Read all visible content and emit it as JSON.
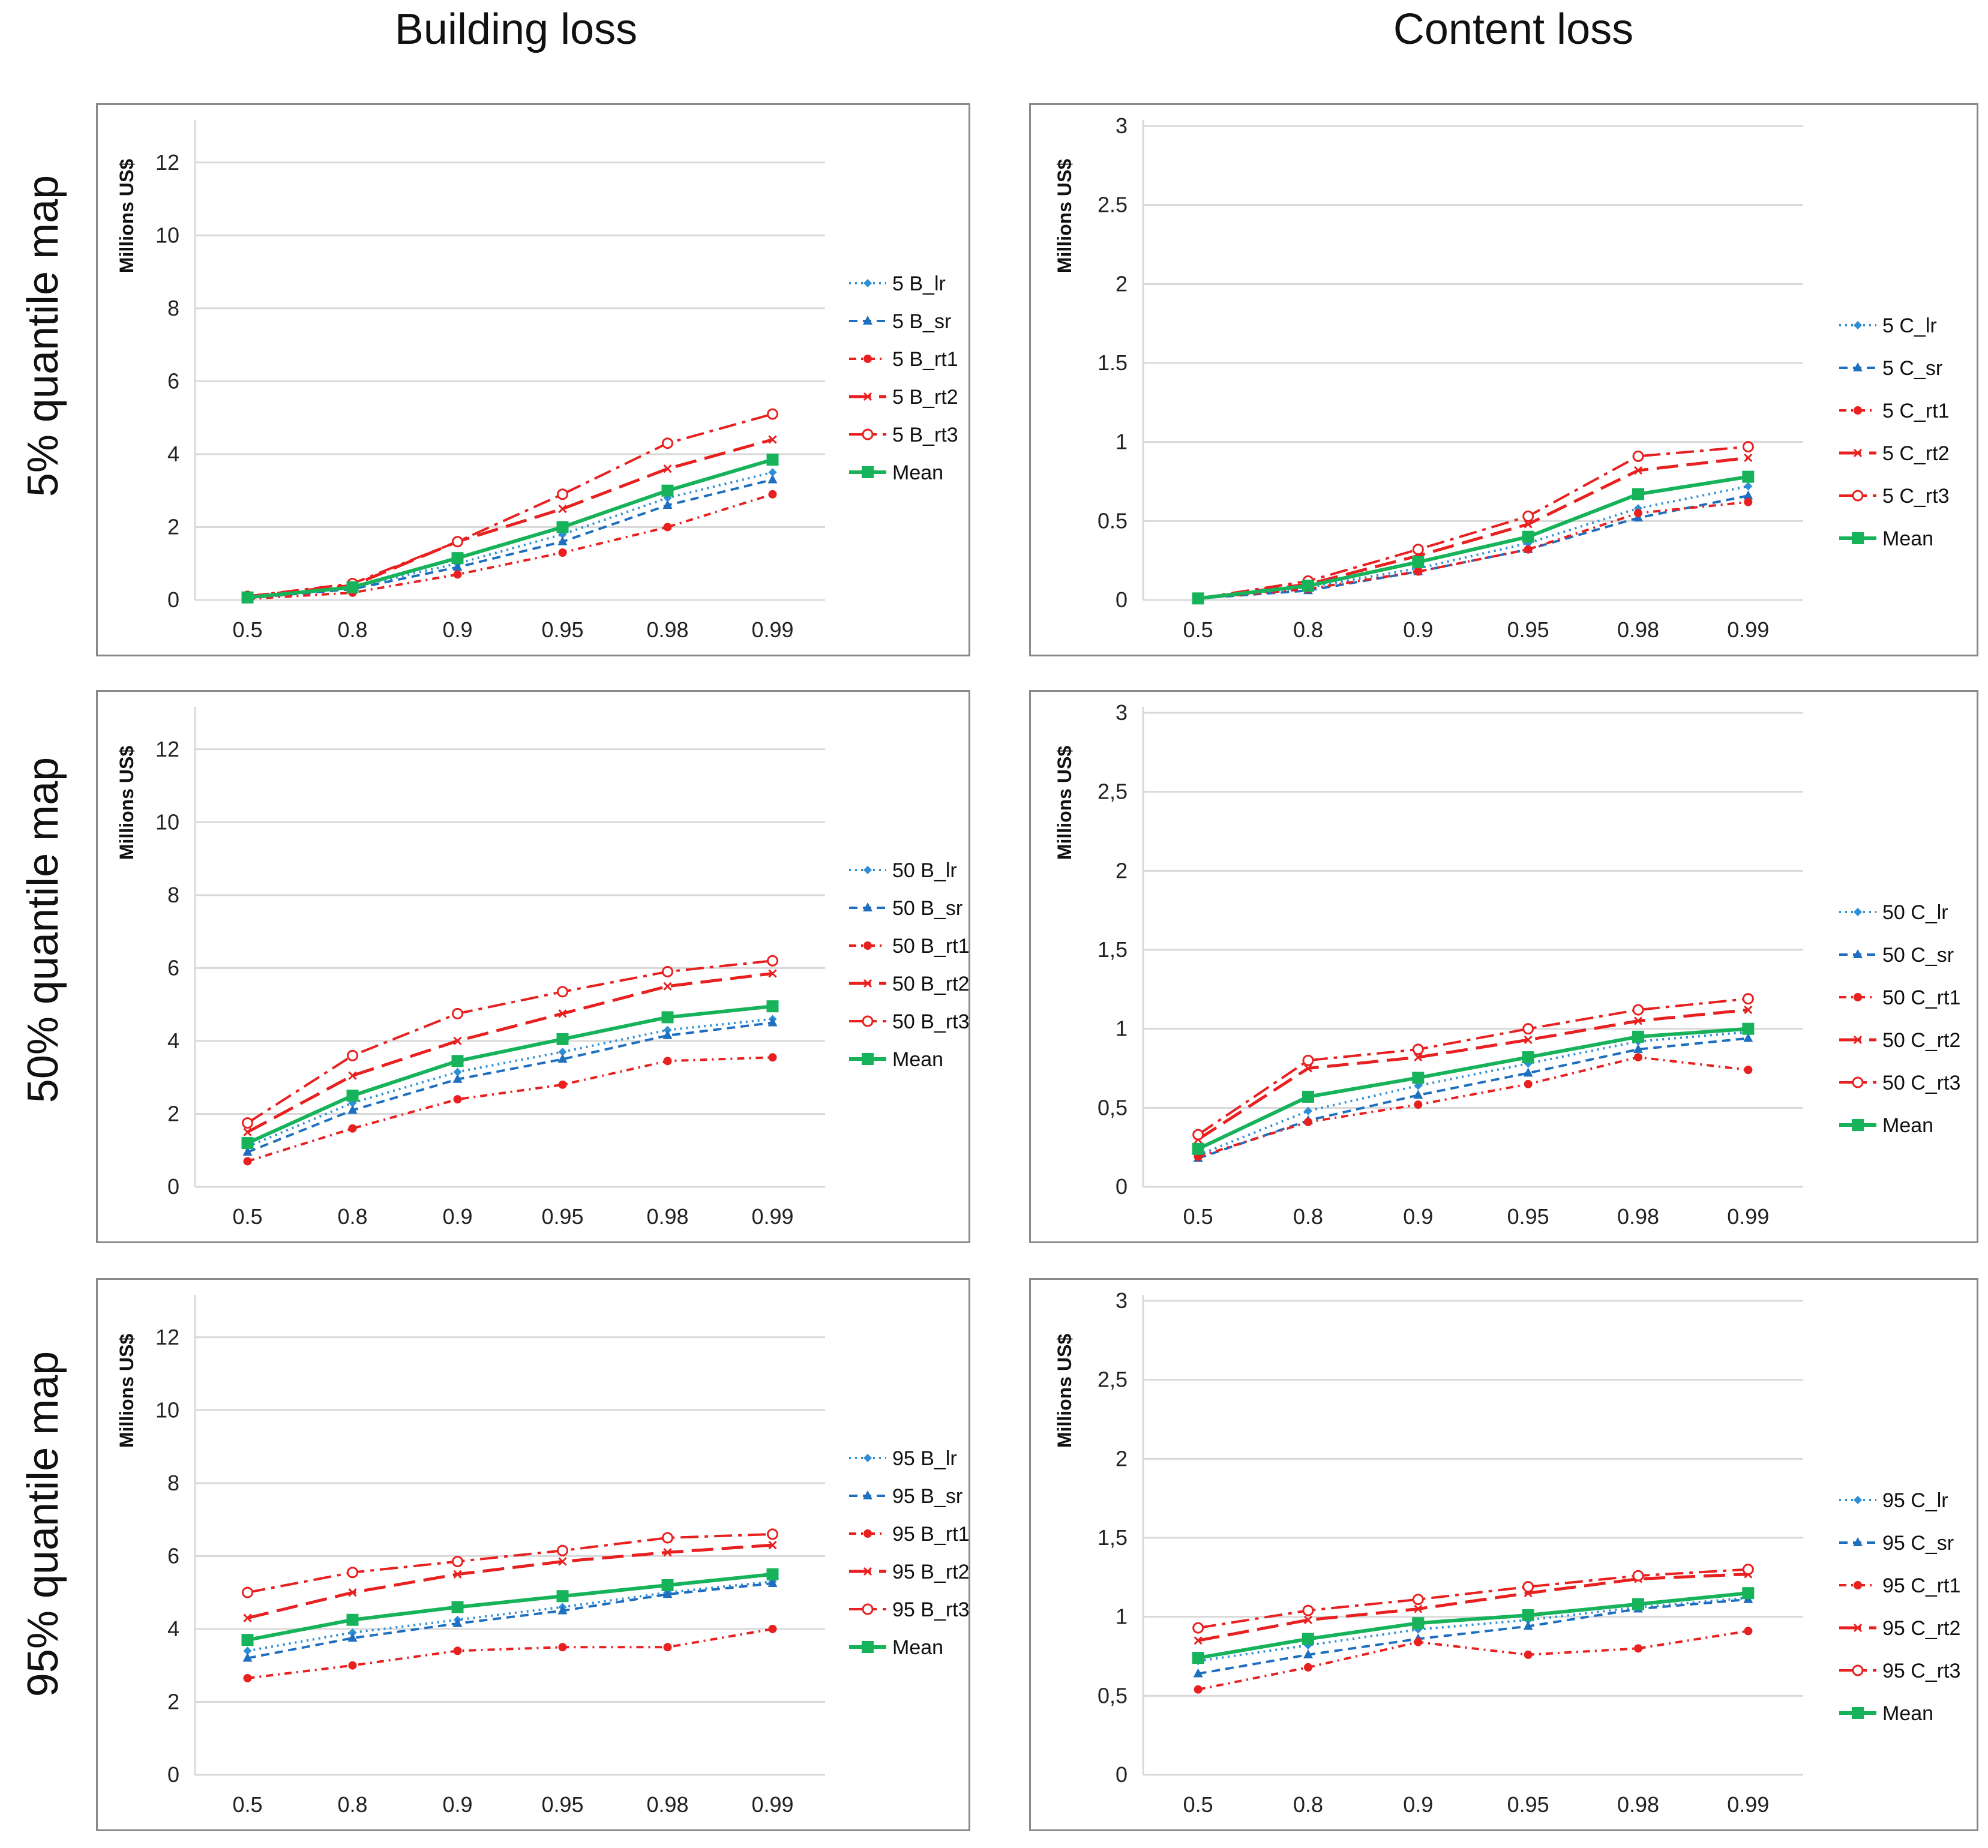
{
  "column_titles": [
    "Building loss",
    "Content loss"
  ],
  "row_titles": [
    "5% quantile map",
    "50% quantile map",
    "95% quantile map"
  ],
  "colors": {
    "lr": "#2e8fd6",
    "sr": "#1f6fc0",
    "rt1": "#e82020",
    "rt2": "#e82020",
    "rt3": "#e82020",
    "mean": "#16b35a"
  },
  "chart_data": [
    {
      "type": "line",
      "ylabel": "Millions US$",
      "ylim": [
        0,
        13
      ],
      "yticks": [
        "0",
        "2",
        "4",
        "6",
        "8",
        "10",
        "12"
      ],
      "categories": [
        "0.5",
        "0.8",
        "0.9",
        "0.95",
        "0.98",
        "0.99"
      ],
      "series": [
        {
          "name": "5 B_lr",
          "style": "lr",
          "values": [
            0.05,
            0.35,
            1.0,
            1.8,
            2.8,
            3.5
          ]
        },
        {
          "name": "5 B_sr",
          "style": "sr",
          "values": [
            0.05,
            0.3,
            0.9,
            1.6,
            2.6,
            3.3
          ]
        },
        {
          "name": "5 B_rt1",
          "style": "rt1",
          "values": [
            0.03,
            0.2,
            0.7,
            1.3,
            2.0,
            2.9
          ]
        },
        {
          "name": "5 B_rt2",
          "style": "rt2",
          "values": [
            0.1,
            0.4,
            1.6,
            2.5,
            3.6,
            4.4
          ]
        },
        {
          "name": "5 B_rt3",
          "style": "rt3",
          "values": [
            0.1,
            0.45,
            1.6,
            2.9,
            4.3,
            5.1
          ]
        },
        {
          "name": "Mean",
          "style": "mean",
          "values": [
            0.07,
            0.35,
            1.15,
            2.0,
            3.0,
            3.85
          ]
        }
      ]
    },
    {
      "type": "line",
      "ylabel": "Millions US$",
      "ylim": [
        0,
        3
      ],
      "yticks": [
        "0",
        "0.5",
        "1",
        "1.5",
        "2",
        "2.5",
        "3"
      ],
      "categories": [
        "0.5",
        "0.8",
        "0.9",
        "0.95",
        "0.98",
        "0.99"
      ],
      "series": [
        {
          "name": "5 C_lr",
          "style": "lr",
          "values": [
            0.01,
            0.08,
            0.2,
            0.36,
            0.58,
            0.72
          ]
        },
        {
          "name": "5 C_sr",
          "style": "sr",
          "values": [
            0.01,
            0.06,
            0.18,
            0.32,
            0.52,
            0.66
          ]
        },
        {
          "name": "5 C_rt1",
          "style": "rt1",
          "values": [
            0.01,
            0.07,
            0.18,
            0.32,
            0.55,
            0.62
          ]
        },
        {
          "name": "5 C_rt2",
          "style": "rt2",
          "values": [
            0.01,
            0.1,
            0.28,
            0.48,
            0.82,
            0.9
          ]
        },
        {
          "name": "5 C_rt3",
          "style": "rt3",
          "values": [
            0.01,
            0.12,
            0.32,
            0.53,
            0.91,
            0.97
          ]
        },
        {
          "name": "Mean",
          "style": "mean",
          "values": [
            0.01,
            0.09,
            0.24,
            0.4,
            0.67,
            0.78
          ]
        }
      ]
    },
    {
      "type": "line",
      "ylabel": "Millions US$",
      "ylim": [
        0,
        13
      ],
      "yticks": [
        "0",
        "2",
        "4",
        "6",
        "8",
        "10",
        "12"
      ],
      "categories": [
        "0.5",
        "0.8",
        "0.9",
        "0.95",
        "0.98",
        "0.99"
      ],
      "series": [
        {
          "name": "50 B_lr",
          "style": "lr",
          "values": [
            1.1,
            2.3,
            3.15,
            3.7,
            4.3,
            4.6
          ]
        },
        {
          "name": "50 B_sr",
          "style": "sr",
          "values": [
            0.95,
            2.1,
            2.95,
            3.5,
            4.15,
            4.5
          ]
        },
        {
          "name": "50 B_rt1",
          "style": "rt1",
          "values": [
            0.7,
            1.6,
            2.4,
            2.8,
            3.45,
            3.55
          ]
        },
        {
          "name": "50 B_rt2",
          "style": "rt2",
          "values": [
            1.5,
            3.05,
            4.0,
            4.75,
            5.5,
            5.85
          ]
        },
        {
          "name": "50 B_rt3",
          "style": "rt3",
          "values": [
            1.75,
            3.6,
            4.75,
            5.35,
            5.9,
            6.2
          ]
        },
        {
          "name": "Mean",
          "style": "mean",
          "values": [
            1.2,
            2.5,
            3.45,
            4.05,
            4.65,
            4.95
          ]
        }
      ]
    },
    {
      "type": "line",
      "ylabel": "Millions US$",
      "ylim": [
        0,
        3
      ],
      "yticks": [
        "0",
        "0,5",
        "1",
        "1,5",
        "2",
        "2,5",
        "3"
      ],
      "categories": [
        "0.5",
        "0.8",
        "0.9",
        "0.95",
        "0.98",
        "0.99"
      ],
      "series": [
        {
          "name": "50 C_lr",
          "style": "lr",
          "values": [
            0.2,
            0.48,
            0.64,
            0.78,
            0.92,
            0.98
          ]
        },
        {
          "name": "50 C_sr",
          "style": "sr",
          "values": [
            0.18,
            0.42,
            0.58,
            0.72,
            0.87,
            0.94
          ]
        },
        {
          "name": "50 C_rt1",
          "style": "rt1",
          "values": [
            0.19,
            0.41,
            0.52,
            0.65,
            0.82,
            0.74
          ]
        },
        {
          "name": "50 C_rt2",
          "style": "rt2",
          "values": [
            0.3,
            0.75,
            0.82,
            0.93,
            1.05,
            1.12
          ]
        },
        {
          "name": "50 C_rt3",
          "style": "rt3",
          "values": [
            0.33,
            0.8,
            0.87,
            1.0,
            1.12,
            1.19
          ]
        },
        {
          "name": "Mean",
          "style": "mean",
          "values": [
            0.24,
            0.57,
            0.69,
            0.82,
            0.95,
            1.0
          ]
        }
      ]
    },
    {
      "type": "line",
      "ylabel": "Millions US$",
      "ylim": [
        0,
        13
      ],
      "yticks": [
        "0",
        "2",
        "4",
        "6",
        "8",
        "10",
        "12"
      ],
      "categories": [
        "0.5",
        "0.8",
        "0.9",
        "0.95",
        "0.98",
        "0.99"
      ],
      "series": [
        {
          "name": "95 B_lr",
          "style": "lr",
          "values": [
            3.4,
            3.9,
            4.25,
            4.6,
            5.0,
            5.3
          ]
        },
        {
          "name": "95 B_sr",
          "style": "sr",
          "values": [
            3.2,
            3.75,
            4.15,
            4.5,
            4.95,
            5.25
          ]
        },
        {
          "name": "95 B_rt1",
          "style": "rt1",
          "values": [
            2.65,
            3.0,
            3.4,
            3.5,
            3.5,
            4.0
          ]
        },
        {
          "name": "95 B_rt2",
          "style": "rt2",
          "values": [
            4.3,
            5.0,
            5.5,
            5.85,
            6.1,
            6.3
          ]
        },
        {
          "name": "95 B_rt3",
          "style": "rt3",
          "values": [
            5.0,
            5.55,
            5.85,
            6.15,
            6.5,
            6.6
          ]
        },
        {
          "name": "Mean",
          "style": "mean",
          "values": [
            3.7,
            4.25,
            4.6,
            4.9,
            5.2,
            5.5
          ]
        }
      ]
    },
    {
      "type": "line",
      "ylabel": "Millions US$",
      "ylim": [
        0,
        3
      ],
      "yticks": [
        "0",
        "0,5",
        "1",
        "1,5",
        "2",
        "2,5",
        "3"
      ],
      "categories": [
        "0.5",
        "0.8",
        "0.9",
        "0.95",
        "0.98",
        "0.99"
      ],
      "series": [
        {
          "name": "95 C_lr",
          "style": "lr",
          "values": [
            0.72,
            0.82,
            0.92,
            0.98,
            1.06,
            1.12
          ]
        },
        {
          "name": "95 C_sr",
          "style": "sr",
          "values": [
            0.64,
            0.76,
            0.86,
            0.94,
            1.05,
            1.11
          ]
        },
        {
          "name": "95 C_rt1",
          "style": "rt1",
          "values": [
            0.54,
            0.68,
            0.84,
            0.76,
            0.8,
            0.91
          ]
        },
        {
          "name": "95 C_rt2",
          "style": "rt2",
          "values": [
            0.85,
            0.98,
            1.05,
            1.15,
            1.24,
            1.27
          ]
        },
        {
          "name": "95 C_rt3",
          "style": "rt3",
          "values": [
            0.93,
            1.04,
            1.11,
            1.19,
            1.26,
            1.3
          ]
        },
        {
          "name": "Mean",
          "style": "mean",
          "values": [
            0.74,
            0.86,
            0.96,
            1.01,
            1.08,
            1.15
          ]
        }
      ]
    }
  ]
}
